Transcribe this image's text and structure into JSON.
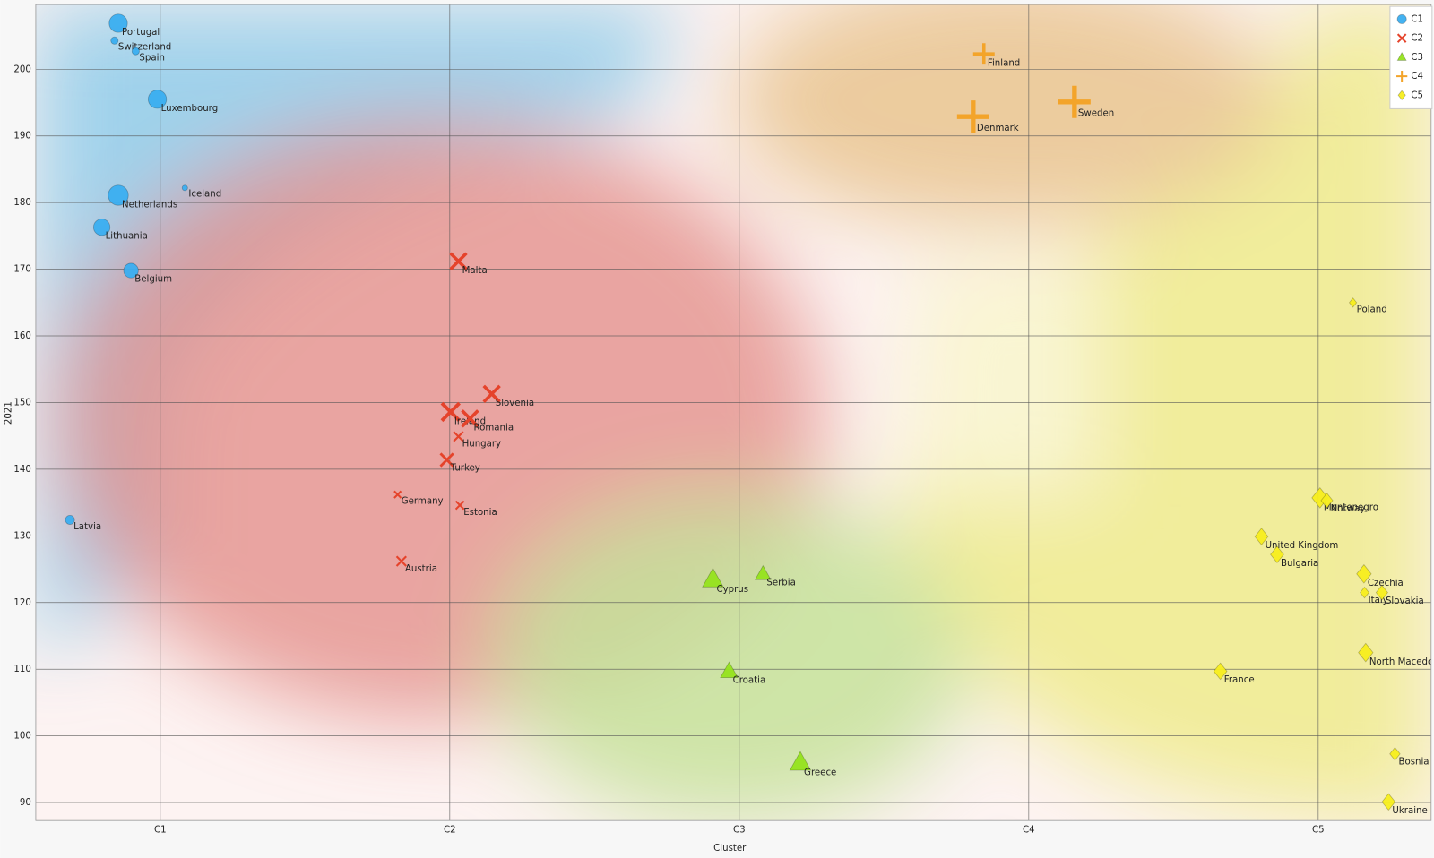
{
  "chart_data": {
    "type": "scatter",
    "x_label": "Cluster",
    "y_label": "2021",
    "xlim": [
      0.57,
      5.39
    ],
    "ylim": [
      87.3,
      209.7
    ],
    "xticks": [
      {
        "value": 1,
        "label": "C1"
      },
      {
        "value": 2,
        "label": "C2"
      },
      {
        "value": 3,
        "label": "C3"
      },
      {
        "value": 4,
        "label": "C4"
      },
      {
        "value": 5,
        "label": "C5"
      }
    ],
    "yticks": [
      90,
      100,
      110,
      120,
      130,
      140,
      150,
      160,
      170,
      180,
      190,
      200
    ],
    "grid": true,
    "legend": "top-right",
    "series": [
      {
        "name": "C1",
        "color": "#3aaef0",
        "marker": "circle",
        "labels": [
          "Portugal",
          "Switzerland",
          "Spain",
          "Luxembourg",
          "Iceland",
          "Netherlands",
          "Lithuania",
          "Belgium",
          "Latvia"
        ],
        "x": [
          0.855,
          0.842,
          0.915,
          0.99,
          1.085,
          0.855,
          0.798,
          0.899,
          0.688
        ],
        "values": [
          206.9,
          204.3,
          202.7,
          195.5,
          182.2,
          181.1,
          176.3,
          169.8,
          132.4
        ],
        "sizes": [
          10,
          4,
          4,
          10,
          3,
          11,
          9,
          8,
          5
        ]
      },
      {
        "name": "C2",
        "color": "#e5432b",
        "marker": "x",
        "labels": [
          "Malta",
          "Slovenia",
          "Ireland",
          "Romania",
          "Hungary",
          "Turkey",
          "Germany",
          "Estonia",
          "Austria"
        ],
        "x": [
          2.03,
          2.145,
          2.003,
          2.07,
          2.03,
          1.99,
          1.82,
          2.035,
          1.833
        ],
        "values": [
          171.2,
          151.3,
          148.6,
          147.6,
          144.9,
          141.4,
          136.2,
          134.6,
          126.2
        ],
        "sizes": [
          10,
          10,
          11,
          10,
          6,
          8,
          4,
          5,
          6
        ]
      },
      {
        "name": "C3",
        "color": "#95e31c",
        "marker": "triangle",
        "labels": [
          "Cyprus",
          "Serbia",
          "Croatia",
          "Greece"
        ],
        "x": [
          2.909,
          3.082,
          2.965,
          3.211
        ],
        "values": [
          123.5,
          124.3,
          109.7,
          96.0
        ],
        "sizes": [
          12,
          9,
          10,
          12
        ]
      },
      {
        "name": "C4",
        "color": "#f3a42a",
        "marker": "plus",
        "labels": [
          "Finland",
          "Denmark",
          "Sweden"
        ],
        "x": [
          3.845,
          3.808,
          4.158
        ],
        "values": [
          202.3,
          192.9,
          195.1
        ],
        "sizes": [
          10,
          15,
          15
        ]
      },
      {
        "name": "C5",
        "color": "#f7ee1e",
        "marker": "diamond",
        "labels": [
          "Poland",
          "Montenegro",
          "Norway",
          "United Kingdom",
          "Bulgaria",
          "Czechia",
          "Italy",
          "Slovakia",
          "North Macedonia",
          "France",
          "Bosnia and Herzegovina",
          "Ukraine"
        ],
        "x": [
          5.12,
          5.006,
          5.03,
          4.804,
          4.858,
          5.158,
          5.16,
          5.22,
          5.164,
          4.662,
          5.265,
          5.243
        ],
        "values": [
          165.0,
          135.7,
          135.3,
          129.9,
          127.2,
          124.3,
          121.5,
          121.5,
          112.5,
          109.7,
          97.3,
          90.1
        ],
        "sizes": [
          5,
          11,
          8,
          9,
          9,
          10,
          6,
          8,
          10,
          9,
          7,
          9
        ]
      }
    ]
  }
}
